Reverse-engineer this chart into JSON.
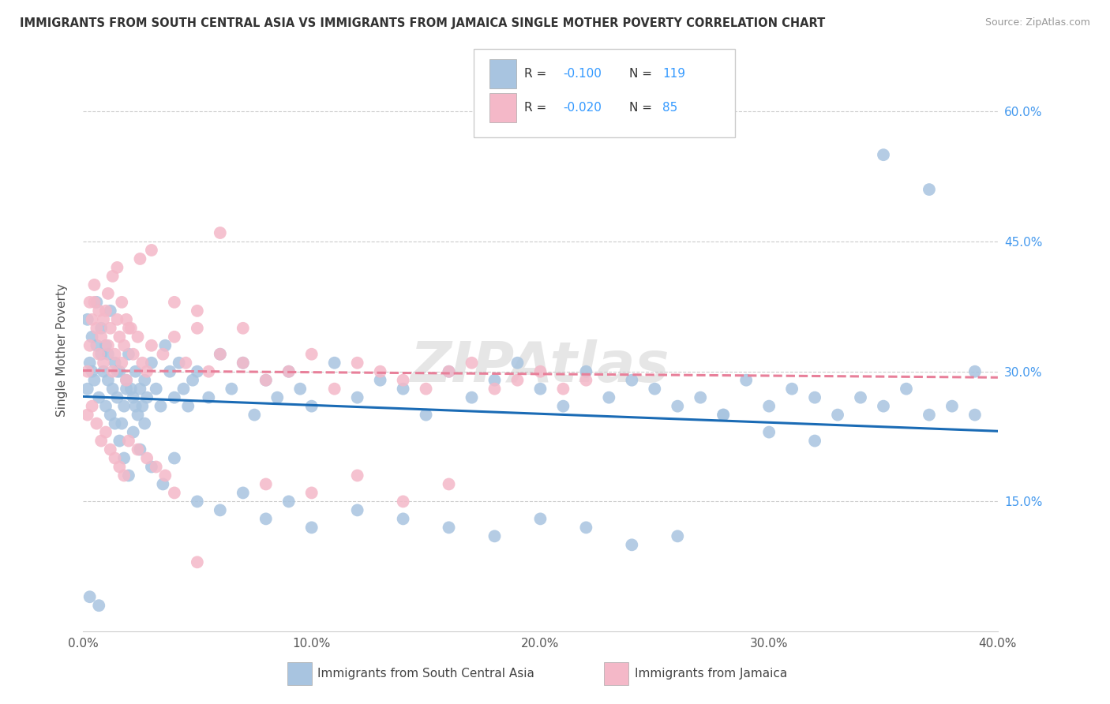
{
  "title": "IMMIGRANTS FROM SOUTH CENTRAL ASIA VS IMMIGRANTS FROM JAMAICA SINGLE MOTHER POVERTY CORRELATION CHART",
  "source": "Source: ZipAtlas.com",
  "ylabel": "Single Mother Poverty",
  "yticks": [
    "15.0%",
    "30.0%",
    "45.0%",
    "60.0%"
  ],
  "ytick_vals": [
    0.15,
    0.3,
    0.45,
    0.6
  ],
  "xlim": [
    0.0,
    0.4
  ],
  "ylim": [
    0.0,
    0.65
  ],
  "legend_blue_label": "Immigrants from South Central Asia",
  "legend_pink_label": "Immigrants from Jamaica",
  "blue_color": "#a8c4e0",
  "pink_color": "#f4b8c8",
  "blue_line_color": "#1a6bb5",
  "pink_line_color": "#e8809a",
  "watermark": "ZIPAtlas",
  "blue_scatter_x": [
    0.002,
    0.003,
    0.004,
    0.005,
    0.006,
    0.007,
    0.008,
    0.009,
    0.01,
    0.011,
    0.012,
    0.013,
    0.014,
    0.015,
    0.016,
    0.017,
    0.018,
    0.019,
    0.02,
    0.021,
    0.022,
    0.023,
    0.024,
    0.025,
    0.026,
    0.027,
    0.028,
    0.03,
    0.032,
    0.034,
    0.036,
    0.038,
    0.04,
    0.042,
    0.044,
    0.046,
    0.048,
    0.05,
    0.055,
    0.06,
    0.065,
    0.07,
    0.075,
    0.08,
    0.085,
    0.09,
    0.095,
    0.1,
    0.11,
    0.12,
    0.13,
    0.14,
    0.15,
    0.16,
    0.17,
    0.18,
    0.19,
    0.2,
    0.21,
    0.22,
    0.23,
    0.24,
    0.25,
    0.26,
    0.27,
    0.28,
    0.29,
    0.3,
    0.31,
    0.32,
    0.33,
    0.34,
    0.35,
    0.36,
    0.37,
    0.38,
    0.39,
    0.002,
    0.004,
    0.006,
    0.008,
    0.01,
    0.012,
    0.014,
    0.016,
    0.018,
    0.02,
    0.022,
    0.025,
    0.03,
    0.035,
    0.04,
    0.05,
    0.06,
    0.07,
    0.08,
    0.09,
    0.1,
    0.12,
    0.14,
    0.16,
    0.18,
    0.2,
    0.22,
    0.24,
    0.26,
    0.28,
    0.3,
    0.32,
    0.35,
    0.37,
    0.39,
    0.003,
    0.007,
    0.011,
    0.015,
    0.019,
    0.023,
    0.027
  ],
  "blue_scatter_y": [
    0.28,
    0.31,
    0.3,
    0.29,
    0.33,
    0.27,
    0.32,
    0.3,
    0.26,
    0.29,
    0.25,
    0.28,
    0.31,
    0.27,
    0.3,
    0.24,
    0.26,
    0.29,
    0.32,
    0.28,
    0.27,
    0.3,
    0.25,
    0.28,
    0.26,
    0.29,
    0.27,
    0.31,
    0.28,
    0.26,
    0.33,
    0.3,
    0.27,
    0.31,
    0.28,
    0.26,
    0.29,
    0.3,
    0.27,
    0.32,
    0.28,
    0.31,
    0.25,
    0.29,
    0.27,
    0.3,
    0.28,
    0.26,
    0.31,
    0.27,
    0.29,
    0.28,
    0.25,
    0.3,
    0.27,
    0.29,
    0.31,
    0.28,
    0.26,
    0.3,
    0.27,
    0.29,
    0.28,
    0.26,
    0.27,
    0.25,
    0.29,
    0.26,
    0.28,
    0.27,
    0.25,
    0.27,
    0.26,
    0.28,
    0.25,
    0.26,
    0.25,
    0.36,
    0.34,
    0.38,
    0.35,
    0.33,
    0.37,
    0.24,
    0.22,
    0.2,
    0.18,
    0.23,
    0.21,
    0.19,
    0.17,
    0.2,
    0.15,
    0.14,
    0.16,
    0.13,
    0.15,
    0.12,
    0.14,
    0.13,
    0.12,
    0.11,
    0.13,
    0.12,
    0.1,
    0.11,
    0.25,
    0.23,
    0.22,
    0.55,
    0.51,
    0.3,
    0.04,
    0.03,
    0.32,
    0.3,
    0.28,
    0.26,
    0.24
  ],
  "pink_scatter_x": [
    0.002,
    0.003,
    0.004,
    0.005,
    0.006,
    0.007,
    0.008,
    0.009,
    0.01,
    0.011,
    0.012,
    0.013,
    0.014,
    0.015,
    0.016,
    0.017,
    0.018,
    0.019,
    0.02,
    0.022,
    0.024,
    0.026,
    0.028,
    0.03,
    0.035,
    0.04,
    0.045,
    0.05,
    0.055,
    0.06,
    0.07,
    0.08,
    0.09,
    0.1,
    0.11,
    0.12,
    0.13,
    0.14,
    0.15,
    0.16,
    0.17,
    0.18,
    0.19,
    0.2,
    0.21,
    0.22,
    0.003,
    0.005,
    0.007,
    0.009,
    0.011,
    0.013,
    0.015,
    0.017,
    0.019,
    0.021,
    0.025,
    0.03,
    0.04,
    0.05,
    0.06,
    0.07,
    0.08,
    0.1,
    0.12,
    0.14,
    0.16,
    0.002,
    0.004,
    0.006,
    0.008,
    0.01,
    0.012,
    0.014,
    0.016,
    0.018,
    0.02,
    0.024,
    0.028,
    0.032,
    0.036,
    0.04,
    0.05
  ],
  "pink_scatter_y": [
    0.3,
    0.33,
    0.36,
    0.38,
    0.35,
    0.32,
    0.34,
    0.31,
    0.37,
    0.33,
    0.35,
    0.3,
    0.32,
    0.36,
    0.34,
    0.31,
    0.33,
    0.29,
    0.35,
    0.32,
    0.34,
    0.31,
    0.3,
    0.33,
    0.32,
    0.34,
    0.31,
    0.35,
    0.3,
    0.32,
    0.31,
    0.29,
    0.3,
    0.32,
    0.28,
    0.31,
    0.3,
    0.29,
    0.28,
    0.3,
    0.31,
    0.28,
    0.29,
    0.3,
    0.28,
    0.29,
    0.38,
    0.4,
    0.37,
    0.36,
    0.39,
    0.41,
    0.42,
    0.38,
    0.36,
    0.35,
    0.43,
    0.44,
    0.38,
    0.37,
    0.46,
    0.35,
    0.17,
    0.16,
    0.18,
    0.15,
    0.17,
    0.25,
    0.26,
    0.24,
    0.22,
    0.23,
    0.21,
    0.2,
    0.19,
    0.18,
    0.22,
    0.21,
    0.2,
    0.19,
    0.18,
    0.16,
    0.08
  ]
}
